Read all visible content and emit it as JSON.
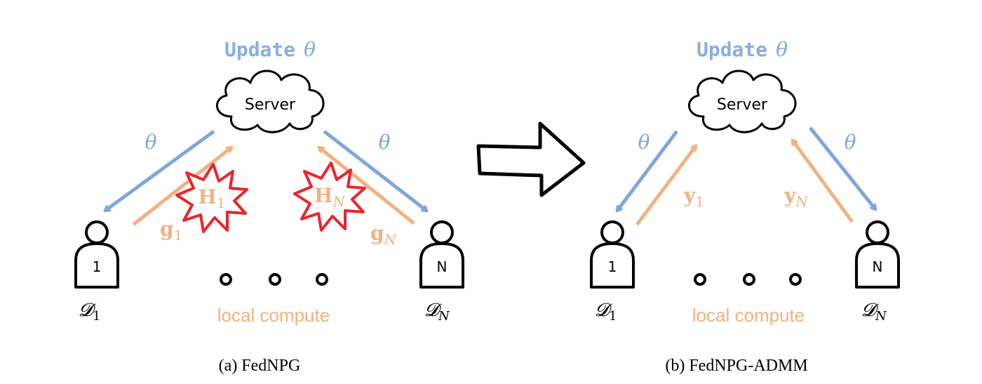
{
  "panels": [
    {
      "update_label": "Update",
      "update_symbol": "θ",
      "server_label": "Server",
      "down_left_label": "θ",
      "down_right_label": "θ",
      "up_left_var": "g",
      "up_left_sub": "1",
      "up_right_var": "g",
      "up_right_sub": "N",
      "burst_left_var": "H",
      "burst_left_sub": "1",
      "burst_right_var": "H",
      "burst_right_sub": "N",
      "client_left_id": "1",
      "client_right_id": "N",
      "dataset_left": "𝓓",
      "dataset_left_sub": "1",
      "dataset_right": "𝓓",
      "dataset_right_sub": "N",
      "local_label": "local compute",
      "caption": "(a) FedNPG"
    },
    {
      "update_label": "Update",
      "update_symbol": "θ",
      "server_label": "Server",
      "down_left_label": "θ",
      "down_right_label": "θ",
      "up_left_var": "y",
      "up_left_sub": "1",
      "up_right_var": "y",
      "up_right_sub": "N",
      "client_left_id": "1",
      "client_right_id": "N",
      "dataset_left": "𝓓",
      "dataset_left_sub": "1",
      "dataset_right": "𝓓",
      "dataset_right_sub": "N",
      "local_label": "local compute",
      "caption": "(b) FedNPG-ADMM"
    }
  ],
  "colors": {
    "theta_blue": "#7ea6dd",
    "update_blue": "#8aaee0",
    "grad_orange": "#f3b181",
    "burst_red": "#e8262a"
  },
  "icons": {
    "transition": "right-arrow-icon",
    "server": "cloud-icon",
    "client": "person-icon",
    "burst": "explosion-icon"
  }
}
